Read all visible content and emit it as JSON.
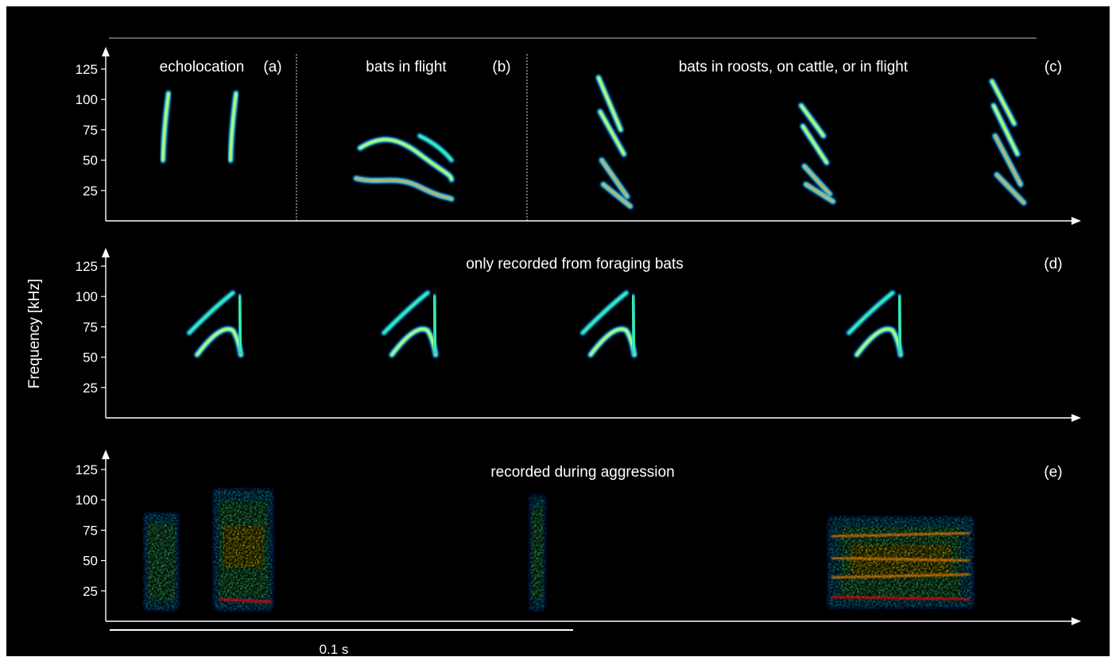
{
  "chart_data": {
    "type": "spectrogram",
    "ylabel": "Frequency [kHz]",
    "yticks": [
      "25",
      "50",
      "75",
      "100",
      "125"
    ],
    "ylim": [
      0,
      140
    ],
    "scale_bar": {
      "label": "0.1 s",
      "seconds": 0.1
    },
    "colormap": [
      "#00008b",
      "#0050ff",
      "#00c8ff",
      "#40ff80",
      "#ffff00",
      "#ff8000",
      "#ff0000"
    ],
    "rows": [
      {
        "panels": [
          {
            "label": "(a)",
            "title": "echolocation"
          },
          {
            "label": "(b)",
            "title": "bats in flight"
          },
          {
            "label": "(c)",
            "title": "bats in roosts, on cattle, or in flight"
          }
        ]
      },
      {
        "panels": [
          {
            "label": "(d)",
            "title": "only recorded from foraging bats"
          }
        ]
      },
      {
        "panels": [
          {
            "label": "(e)",
            "title": "recorded during aggression"
          }
        ]
      }
    ]
  }
}
